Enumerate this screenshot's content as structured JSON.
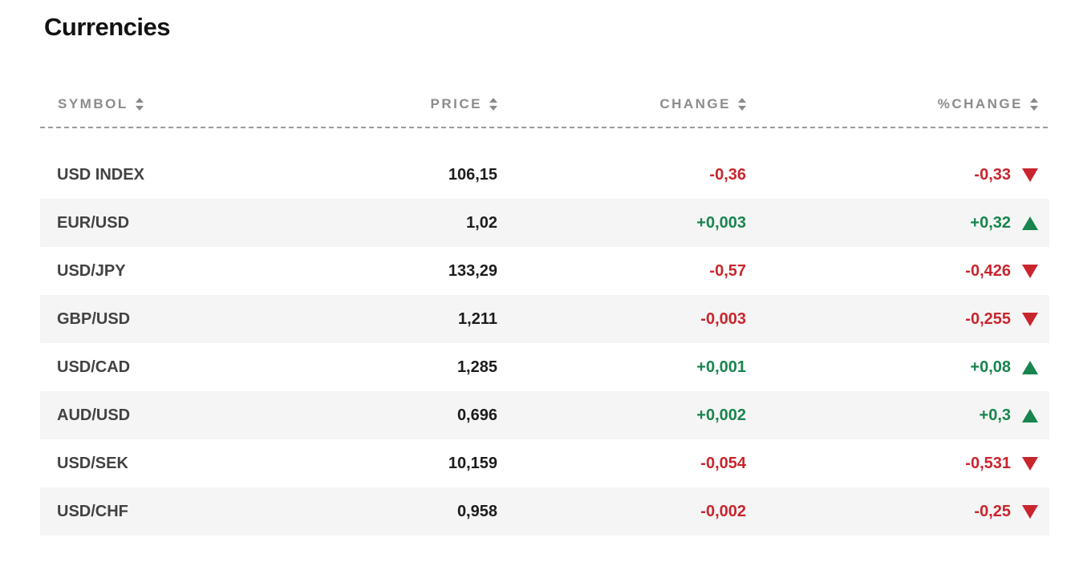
{
  "page": {
    "title": "Currencies"
  },
  "colors": {
    "positive": "#18854e",
    "negative": "#c9252d",
    "row_alt": "#f5f5f5",
    "header_text": "#8c8c8c",
    "symbol_text": "#424242",
    "price_text": "#1c1c1c"
  },
  "icons": {
    "sort": "up-down-sort-arrows",
    "trend_up": "filled-triangle-up",
    "trend_down": "filled-triangle-down"
  },
  "table": {
    "columns": [
      {
        "key": "symbol",
        "label": "SYMBOL",
        "sortable": true
      },
      {
        "key": "price",
        "label": "PRICE",
        "sortable": true
      },
      {
        "key": "change",
        "label": "CHANGE",
        "sortable": true
      },
      {
        "key": "pct_change",
        "label": "%CHANGE",
        "sortable": true
      }
    ],
    "rows": [
      {
        "symbol": "USD INDEX",
        "price": "106,15",
        "change": "-0,36",
        "pct_change": "-0,33",
        "trend": "down"
      },
      {
        "symbol": "EUR/USD",
        "price": "1,02",
        "change": "+0,003",
        "pct_change": "+0,32",
        "trend": "up"
      },
      {
        "symbol": "USD/JPY",
        "price": "133,29",
        "change": "-0,57",
        "pct_change": "-0,426",
        "trend": "down"
      },
      {
        "symbol": "GBP/USD",
        "price": "1,211",
        "change": "-0,003",
        "pct_change": "-0,255",
        "trend": "down"
      },
      {
        "symbol": "USD/CAD",
        "price": "1,285",
        "change": "+0,001",
        "pct_change": "+0,08",
        "trend": "up"
      },
      {
        "symbol": "AUD/USD",
        "price": "0,696",
        "change": "+0,002",
        "pct_change": "+0,3",
        "trend": "up"
      },
      {
        "symbol": "USD/SEK",
        "price": "10,159",
        "change": "-0,054",
        "pct_change": "-0,531",
        "trend": "down"
      },
      {
        "symbol": "USD/CHF",
        "price": "0,958",
        "change": "-0,002",
        "pct_change": "-0,25",
        "trend": "down"
      }
    ]
  }
}
